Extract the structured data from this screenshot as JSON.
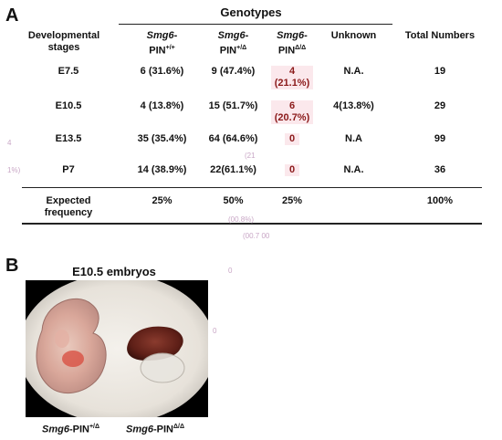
{
  "panel_labels": {
    "a": "A",
    "b": "B"
  },
  "table": {
    "group_header": "Genotypes",
    "col_headers": {
      "stages": "Developmental stages",
      "wt_italic": "Smg6",
      "wt_rest": "-",
      "wt_line2": "PIN",
      "wt_sup": "+/+",
      "het_italic": "Smg6",
      "het_rest": "-",
      "het_line2": "PIN",
      "het_sup": "+/Δ",
      "ko_italic": "Smg6",
      "ko_rest": "-",
      "ko_line2": "PIN",
      "ko_sup": "Δ/Δ",
      "unknown": "Unknown",
      "total": "Total Numbers"
    },
    "rows": [
      {
        "stage": "E7.5",
        "wt": "6 (31.6%)",
        "het": "9 (47.4%)",
        "ko": "4 (21.1%)",
        "unknown": "N.A.",
        "total": "19"
      },
      {
        "stage": "E10.5",
        "wt": "4 (13.8%)",
        "het": "15 (51.7%)",
        "ko": "6 (20.7%)",
        "unknown": "4(13.8%)",
        "total": "29"
      },
      {
        "stage": "E13.5",
        "wt": "35 (35.4%)",
        "het": "64 (64.6%)",
        "ko": "0",
        "unknown": "N.A",
        "total": "99"
      },
      {
        "stage": "P7",
        "wt": "14 (38.9%)",
        "het": "22(61.1%)",
        "ko": "0",
        "unknown": "N.A.",
        "total": "36"
      }
    ],
    "expected": {
      "label": "Expected frequency",
      "wt": "25%",
      "het": "50%",
      "ko": "25%",
      "unknown": "",
      "total": "100%"
    }
  },
  "panel_b": {
    "title": "E10.5 embryos",
    "caption_left_italic": "Smg6",
    "caption_left_rest": "-PIN",
    "caption_left_sup": "+/Δ",
    "caption_right_italic": "Smg6",
    "caption_right_rest": "-PIN",
    "caption_right_sup": "Δ/Δ"
  },
  "colors": {
    "ko_highlight_text": "#8b1a1a",
    "ko_highlight_bg": "#fbe8ec"
  }
}
